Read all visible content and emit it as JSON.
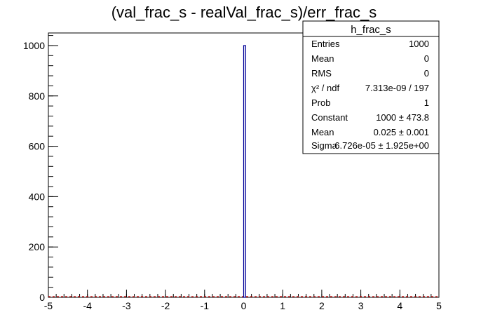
{
  "chart_data": {
    "type": "bar",
    "title": "(val_frac_s - realVal_frac_s)/err_frac_s",
    "xlabel": "",
    "ylabel": "",
    "xlim": [
      -5,
      5
    ],
    "ylim": [
      0,
      1050
    ],
    "x_ticks": [
      -5,
      -4,
      -3,
      -2,
      -1,
      0,
      1,
      2,
      3,
      4,
      5
    ],
    "y_ticks": [
      0,
      200,
      400,
      600,
      800,
      1000
    ],
    "bins": 200,
    "histogram": [
      {
        "x_low": 0.0,
        "x_high": 0.05,
        "count": 1000
      }
    ],
    "fit_function": {
      "type": "gaus",
      "color": "#cc0000",
      "constant": 1000,
      "mean": 0.025,
      "sigma": 6.726e-05
    },
    "bar_color": "#000099",
    "stats_box": {
      "name": "h_frac_s",
      "rows": [
        {
          "label": "Entries",
          "value": "1000"
        },
        {
          "label": "Mean",
          "value": "0"
        },
        {
          "label": "RMS",
          "value": "0"
        },
        {
          "label": "χ² / ndf",
          "value": "7.313e-09 / 197"
        },
        {
          "label": "Prob",
          "value": "1"
        },
        {
          "label": "Constant",
          "value": "1000 ± 473.8"
        },
        {
          "label": "Mean",
          "value": "0.025 ± 0.001"
        },
        {
          "label": "Sigma",
          "value": "6.726e-05  ± 1.925e+00"
        }
      ]
    }
  }
}
